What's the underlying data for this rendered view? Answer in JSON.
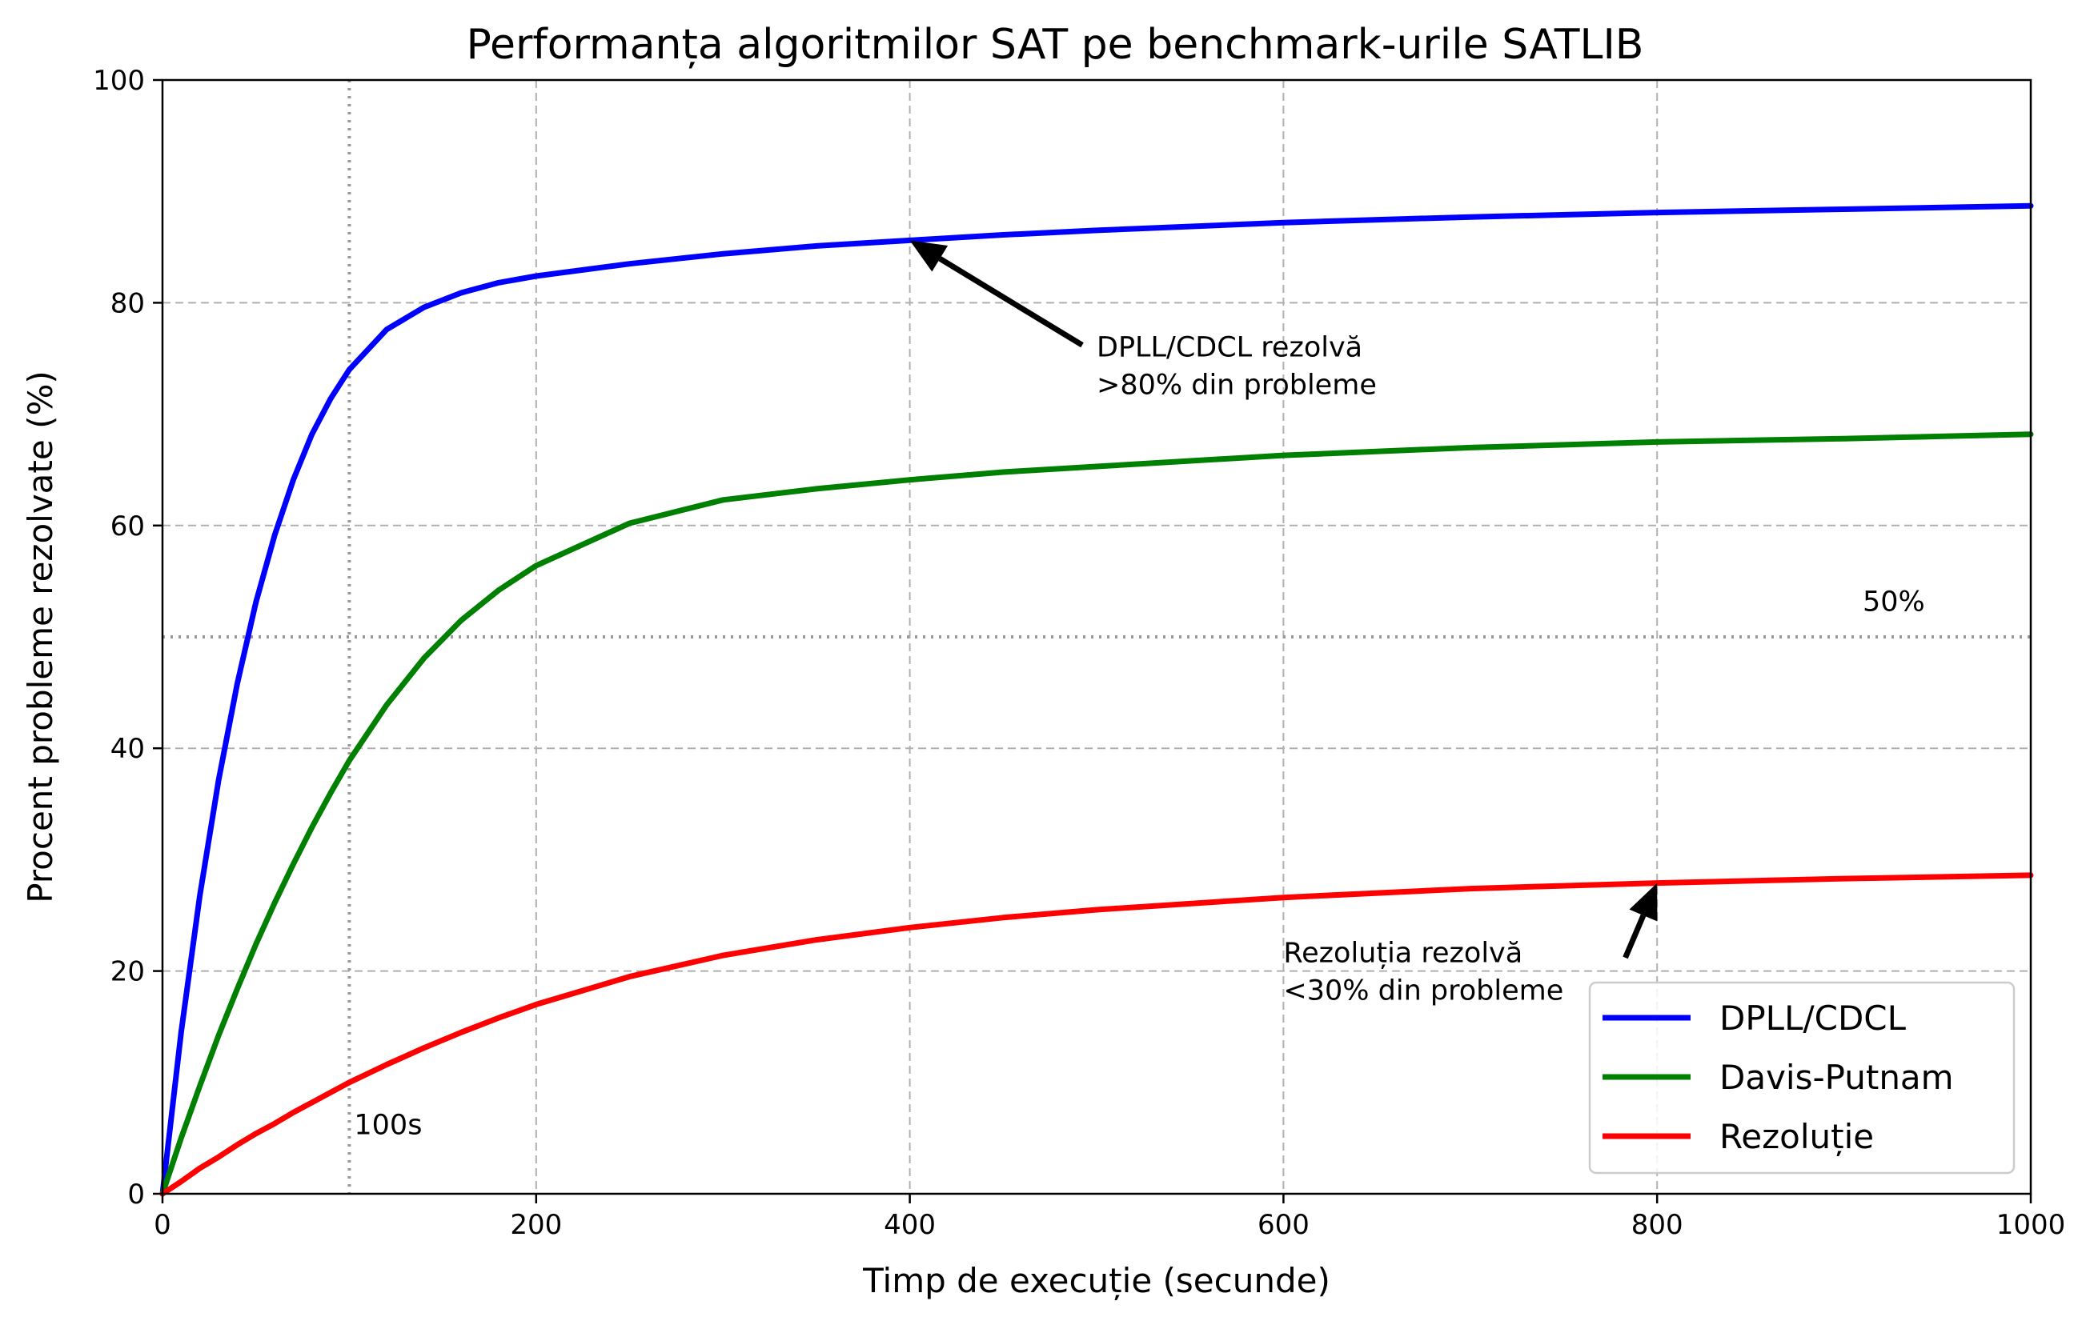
{
  "chart_data": {
    "type": "line",
    "title": "Performanța algoritmilor SAT pe benchmark-urile SATLIB",
    "xlabel": "Timp de execuție (secunde)",
    "ylabel": "Procent probleme rezolvate (%)",
    "xlim": [
      0,
      1000
    ],
    "ylim": [
      0,
      100
    ],
    "xticks": [
      0,
      200,
      400,
      600,
      800,
      1000
    ],
    "yticks": [
      0,
      20,
      40,
      60,
      80,
      100
    ],
    "xtick_labels": [
      "0",
      "200",
      "400",
      "600",
      "800",
      "1000"
    ],
    "ytick_labels": [
      "0",
      "20",
      "40",
      "60",
      "80",
      "100"
    ],
    "grid": true,
    "legend_position": "lower right",
    "x": [
      0,
      10,
      20,
      30,
      40,
      50,
      60,
      70,
      80,
      90,
      100,
      120,
      140,
      160,
      180,
      200,
      250,
      300,
      350,
      400,
      450,
      500,
      600,
      700,
      800,
      900,
      1000
    ],
    "series": [
      {
        "name": "DPLL/CDCL",
        "color": "#0000ff",
        "values": [
          0,
          14.5,
          26.8,
          37.1,
          45.8,
          53.1,
          59.1,
          64.1,
          68.2,
          71.4,
          74.0,
          77.6,
          79.6,
          80.9,
          81.8,
          82.4,
          83.5,
          84.4,
          85.1,
          85.6,
          86.1,
          86.5,
          87.2,
          87.7,
          88.1,
          88.4,
          88.7
        ]
      },
      {
        "name": "Davis-Putnam",
        "color": "#008000",
        "values": [
          0,
          5.0,
          9.7,
          14.2,
          18.4,
          22.4,
          26.1,
          29.6,
          32.9,
          36.0,
          38.9,
          43.9,
          48.1,
          51.5,
          54.2,
          56.4,
          60.2,
          62.3,
          63.3,
          64.1,
          64.8,
          65.3,
          66.3,
          67.0,
          67.5,
          67.8,
          68.2
        ]
      },
      {
        "name": "Rezoluție",
        "color": "#ff0000",
        "values": [
          0,
          1.1,
          2.3,
          3.3,
          4.4,
          5.4,
          6.3,
          7.3,
          8.2,
          9.1,
          10.0,
          11.6,
          13.1,
          14.5,
          15.8,
          17.0,
          19.5,
          21.4,
          22.8,
          23.9,
          24.8,
          25.5,
          26.6,
          27.4,
          27.9,
          28.3,
          28.6
        ]
      }
    ],
    "reference_lines": [
      {
        "orientation": "vertical",
        "value": 100,
        "label": "100s"
      },
      {
        "orientation": "horizontal",
        "value": 50,
        "label": "50%"
      }
    ],
    "annotations": [
      {
        "lines": [
          "DPLL/CDCL rezolvă",
          ">80% din probleme"
        ],
        "text_x": 500,
        "text_y": 73.6,
        "arrow_to": [
          400,
          85.6
        ]
      },
      {
        "lines": [
          "Rezoluția rezolvă",
          "<30% din probleme"
        ],
        "text_x": 600,
        "text_y": 19.2,
        "arrow_to": [
          800,
          27.9
        ]
      }
    ]
  }
}
